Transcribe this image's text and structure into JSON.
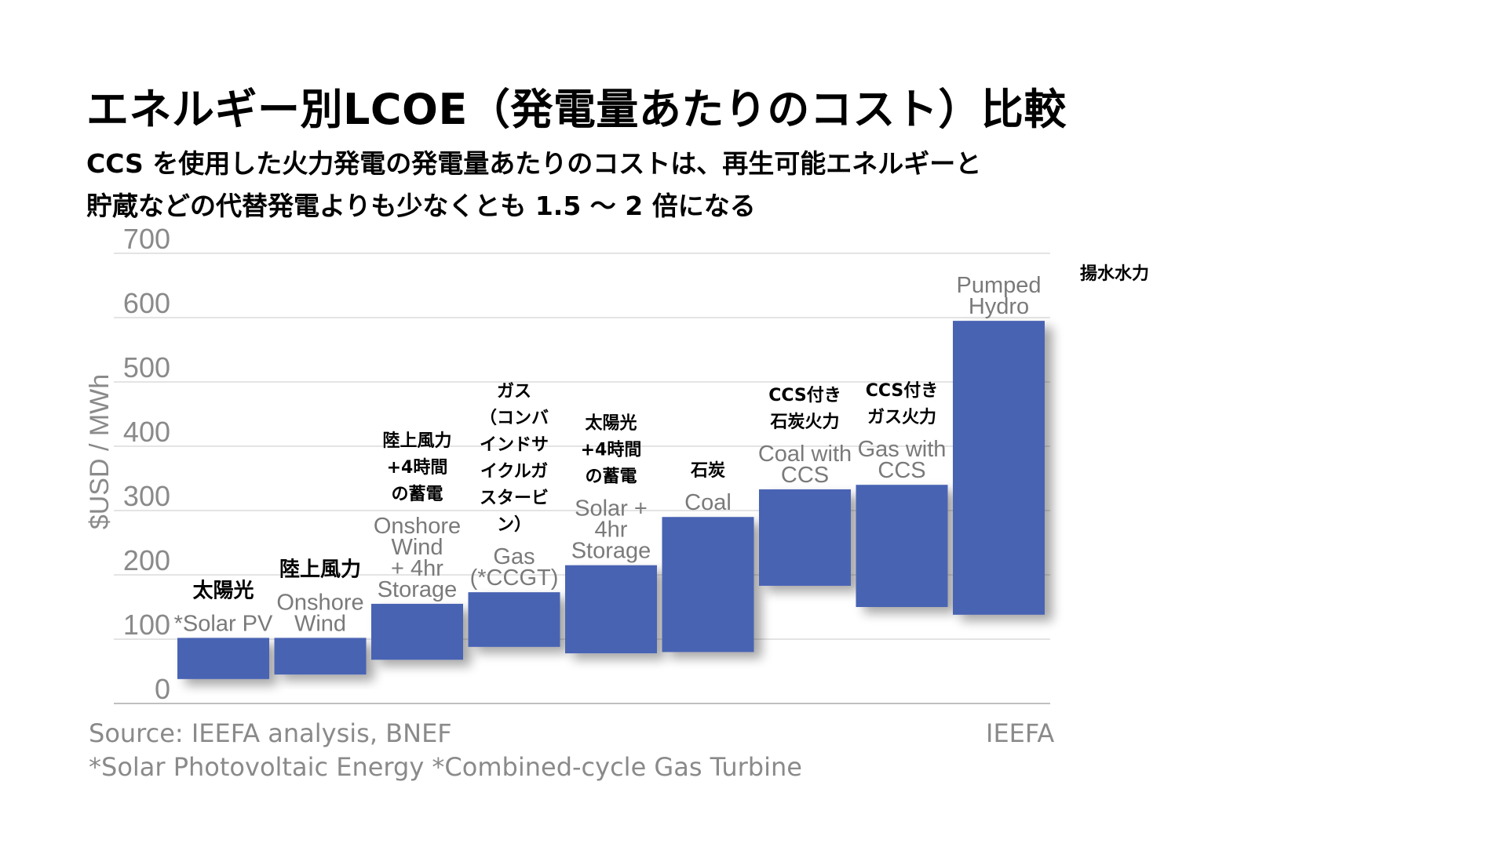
{
  "title": "エネルギー別LCOE（発電量あたりのコスト）比較",
  "subtitle": [
    "CCS を使用した火力発電の発電量あたりのコストは、再生可能エネルギーと",
    "貯蔵などの代替発電よりも少なくとも 1.5 ～ 2 倍になる"
  ],
  "chart_data": {
    "type": "bar",
    "subtype": "floating-range",
    "ylabel": "$USD  / MWh",
    "ylim": [
      0,
      700
    ],
    "yticks": [
      0,
      100,
      200,
      300,
      400,
      500,
      600,
      700
    ],
    "grid": true,
    "bar_color": "#4a63b3",
    "categories": [
      {
        "label_en": [
          "*Solar PV"
        ],
        "label_ja": [
          "太陽光"
        ],
        "low": 38,
        "high": 102
      },
      {
        "label_en": [
          "Onshore",
          "Wind"
        ],
        "label_ja": [
          "陸上風力"
        ],
        "low": 45,
        "high": 102
      },
      {
        "label_en": [
          "Onshore",
          "Wind",
          "+ 4hr",
          "Storage"
        ],
        "label_ja": [
          "陸上風力",
          "+4時間",
          "の蓄電"
        ],
        "low": 68,
        "high": 155
      },
      {
        "label_en": [
          "Gas",
          "(*CCGT)"
        ],
        "label_ja": [
          "ガス",
          "（コンバ",
          "インドサ",
          "イクルガ",
          "スタービ",
          "ン）"
        ],
        "low": 88,
        "high": 173
      },
      {
        "label_en": [
          "Solar +",
          "4hr",
          "Storage"
        ],
        "label_ja": [
          "太陽光",
          "+4時間",
          "の蓄電"
        ],
        "low": 78,
        "high": 215
      },
      {
        "label_en": [
          "Coal"
        ],
        "label_ja": [
          "石炭"
        ],
        "low": 80,
        "high": 290
      },
      {
        "label_en": [
          "Coal with",
          "CCS"
        ],
        "label_ja": [
          "CCS付き",
          "石炭火力"
        ],
        "low": 183,
        "high": 333
      },
      {
        "label_en": [
          "Gas with",
          "CCS"
        ],
        "label_ja": [
          "CCS付き",
          "ガス火力"
        ],
        "low": 150,
        "high": 340
      },
      {
        "label_en": [
          "Pumped",
          "Hydro"
        ],
        "label_ja": [
          "揚水水力"
        ],
        "low": 138,
        "high": 595
      }
    ]
  },
  "source": {
    "line1": "Source: IEEFA analysis, BNEF",
    "brand": "IEEFA",
    "line2": "*Solar Photovoltaic Energy   *Combined-cycle Gas Turbine"
  }
}
